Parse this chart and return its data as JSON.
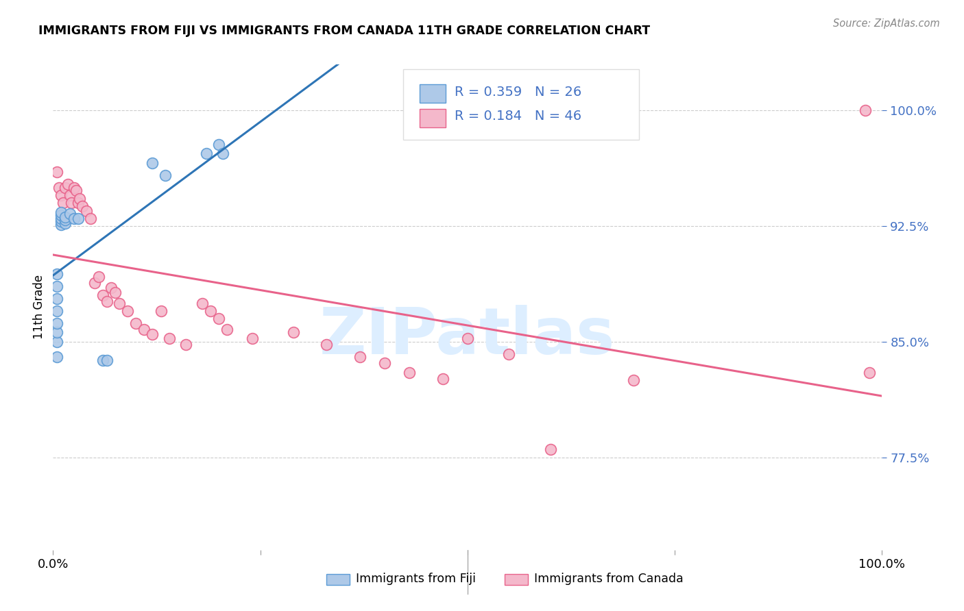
{
  "title": "IMMIGRANTS FROM FIJI VS IMMIGRANTS FROM CANADA 11TH GRADE CORRELATION CHART",
  "source": "Source: ZipAtlas.com",
  "ylabel": "11th Grade",
  "ytick_labels": [
    "77.5%",
    "85.0%",
    "92.5%",
    "100.0%"
  ],
  "ytick_values": [
    0.775,
    0.85,
    0.925,
    1.0
  ],
  "xlim": [
    0.0,
    1.0
  ],
  "ylim": [
    0.715,
    1.03
  ],
  "fiji_color": "#aec9e8",
  "canada_color": "#f4b8cb",
  "fiji_edge_color": "#5b9bd5",
  "canada_edge_color": "#e8628a",
  "trend_fiji_color": "#2e75b6",
  "trend_canada_color": "#e8628a",
  "fiji_R": 0.359,
  "fiji_N": 26,
  "canada_R": 0.184,
  "canada_N": 46,
  "legend_color": "#4472c4",
  "watermark_text": "ZIPatlas",
  "watermark_color": "#ddeeff",
  "background_color": "#ffffff",
  "grid_color": "#cccccc",
  "fiji_x": [
    0.005,
    0.005,
    0.005,
    0.005,
    0.005,
    0.005,
    0.005,
    0.005,
    0.01,
    0.01,
    0.01,
    0.01,
    0.01,
    0.015,
    0.015,
    0.015,
    0.02,
    0.025,
    0.03,
    0.06,
    0.065,
    0.12,
    0.135,
    0.185,
    0.2,
    0.205
  ],
  "fiji_y": [
    0.84,
    0.85,
    0.856,
    0.862,
    0.87,
    0.878,
    0.886,
    0.894,
    0.926,
    0.928,
    0.93,
    0.932,
    0.934,
    0.927,
    0.929,
    0.931,
    0.933,
    0.93,
    0.93,
    0.838,
    0.838,
    0.966,
    0.958,
    0.972,
    0.978,
    0.972
  ],
  "canada_x": [
    0.005,
    0.007,
    0.01,
    0.012,
    0.015,
    0.018,
    0.02,
    0.022,
    0.025,
    0.028,
    0.03,
    0.032,
    0.035,
    0.04,
    0.045,
    0.05,
    0.055,
    0.06,
    0.065,
    0.07,
    0.075,
    0.08,
    0.09,
    0.1,
    0.11,
    0.12,
    0.13,
    0.14,
    0.16,
    0.18,
    0.19,
    0.2,
    0.21,
    0.24,
    0.29,
    0.33,
    0.37,
    0.4,
    0.43,
    0.47,
    0.5,
    0.55,
    0.6,
    0.7,
    0.98,
    0.985
  ],
  "canada_y": [
    0.96,
    0.95,
    0.945,
    0.94,
    0.95,
    0.952,
    0.945,
    0.94,
    0.95,
    0.948,
    0.94,
    0.943,
    0.938,
    0.935,
    0.93,
    0.888,
    0.892,
    0.88,
    0.876,
    0.885,
    0.882,
    0.875,
    0.87,
    0.862,
    0.858,
    0.855,
    0.87,
    0.852,
    0.848,
    0.875,
    0.87,
    0.865,
    0.858,
    0.852,
    0.856,
    0.848,
    0.84,
    0.836,
    0.83,
    0.826,
    0.852,
    0.842,
    0.78,
    0.825,
    1.0,
    0.83
  ]
}
